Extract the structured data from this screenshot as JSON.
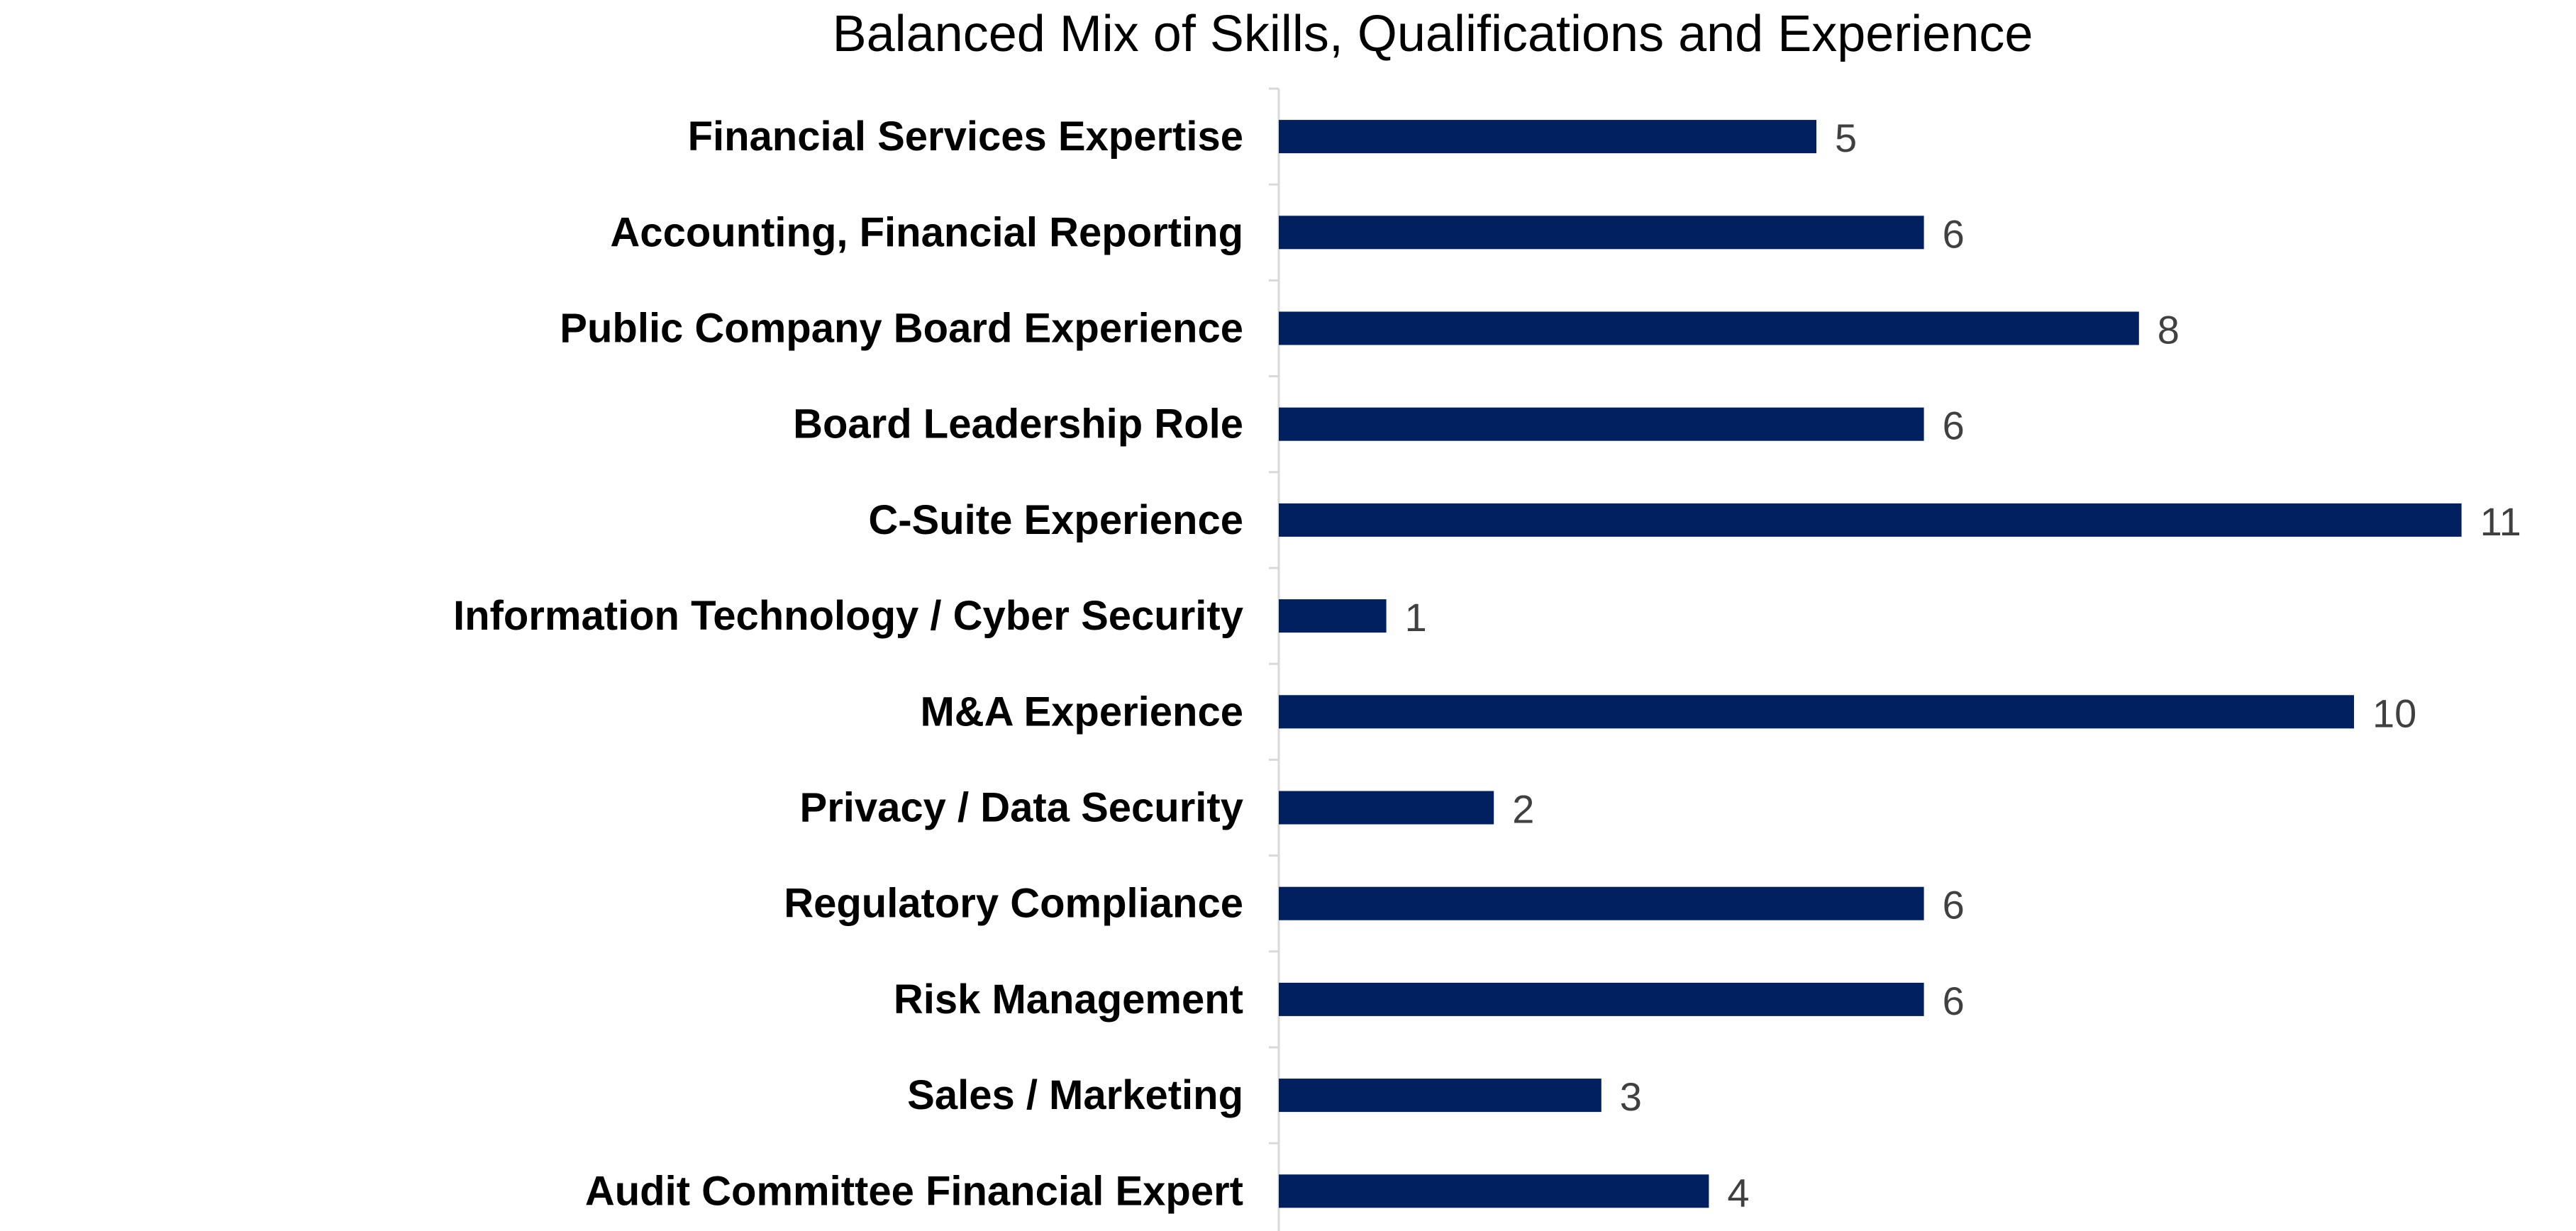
{
  "chart_data": {
    "type": "bar",
    "orientation": "horizontal",
    "title": "Balanced Mix of Skills, Qualifications and Experience",
    "xlabel": "",
    "ylabel": "",
    "categories": [
      "Financial Services Expertise",
      "Accounting, Financial Reporting",
      "Public Company Board Experience",
      "Board Leadership Role",
      "C-Suite Experience",
      "Information Technology / Cyber Security",
      "M&A Experience",
      "Privacy / Data Security",
      "Regulatory Compliance",
      "Risk Management",
      "Sales / Marketing",
      "Audit Committee Financial Expert"
    ],
    "values": [
      5,
      6,
      8,
      6,
      11,
      1,
      10,
      2,
      6,
      6,
      3,
      4
    ],
    "xlim": [
      0,
      11
    ],
    "grid": false,
    "legend": "none",
    "data_labels": true,
    "colors": {
      "bar": "#002060",
      "value_label": "#404040",
      "category_label": "#000000",
      "axis": "#d9d9d9"
    }
  }
}
